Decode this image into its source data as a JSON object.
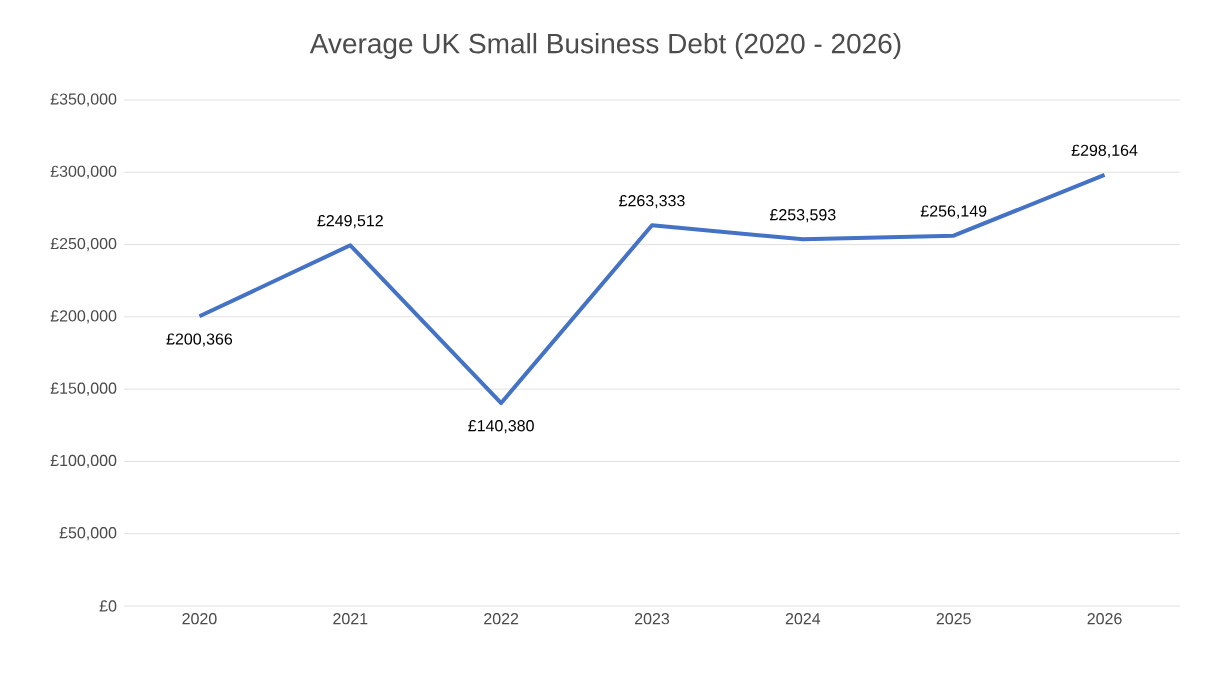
{
  "chart_data": {
    "type": "line",
    "title": "Average UK Small Business Debt (2020 - 2026)",
    "categories": [
      "2020",
      "2021",
      "2022",
      "2023",
      "2024",
      "2025",
      "2026"
    ],
    "values": [
      200366,
      249512,
      140380,
      263333,
      253593,
      256149,
      298164
    ],
    "value_labels": [
      "£200,366",
      "£249,512",
      "£140,380",
      "£263,333",
      "£253,593",
      "£256,149",
      "£298,164"
    ],
    "color": "#4472c4",
    "ylim": [
      0,
      350000
    ],
    "yticks": [
      {
        "value": 0,
        "label": "£0"
      },
      {
        "value": 50000,
        "label": "£50,000"
      },
      {
        "value": 100000,
        "label": "£100,000"
      },
      {
        "value": 150000,
        "label": "£150,000"
      },
      {
        "value": 200000,
        "label": "£200,000"
      },
      {
        "value": 250000,
        "label": "£250,000"
      },
      {
        "value": 300000,
        "label": "£300,000"
      },
      {
        "value": 350000,
        "label": "£350,000"
      }
    ],
    "grid": "y",
    "line_style": "solid"
  }
}
